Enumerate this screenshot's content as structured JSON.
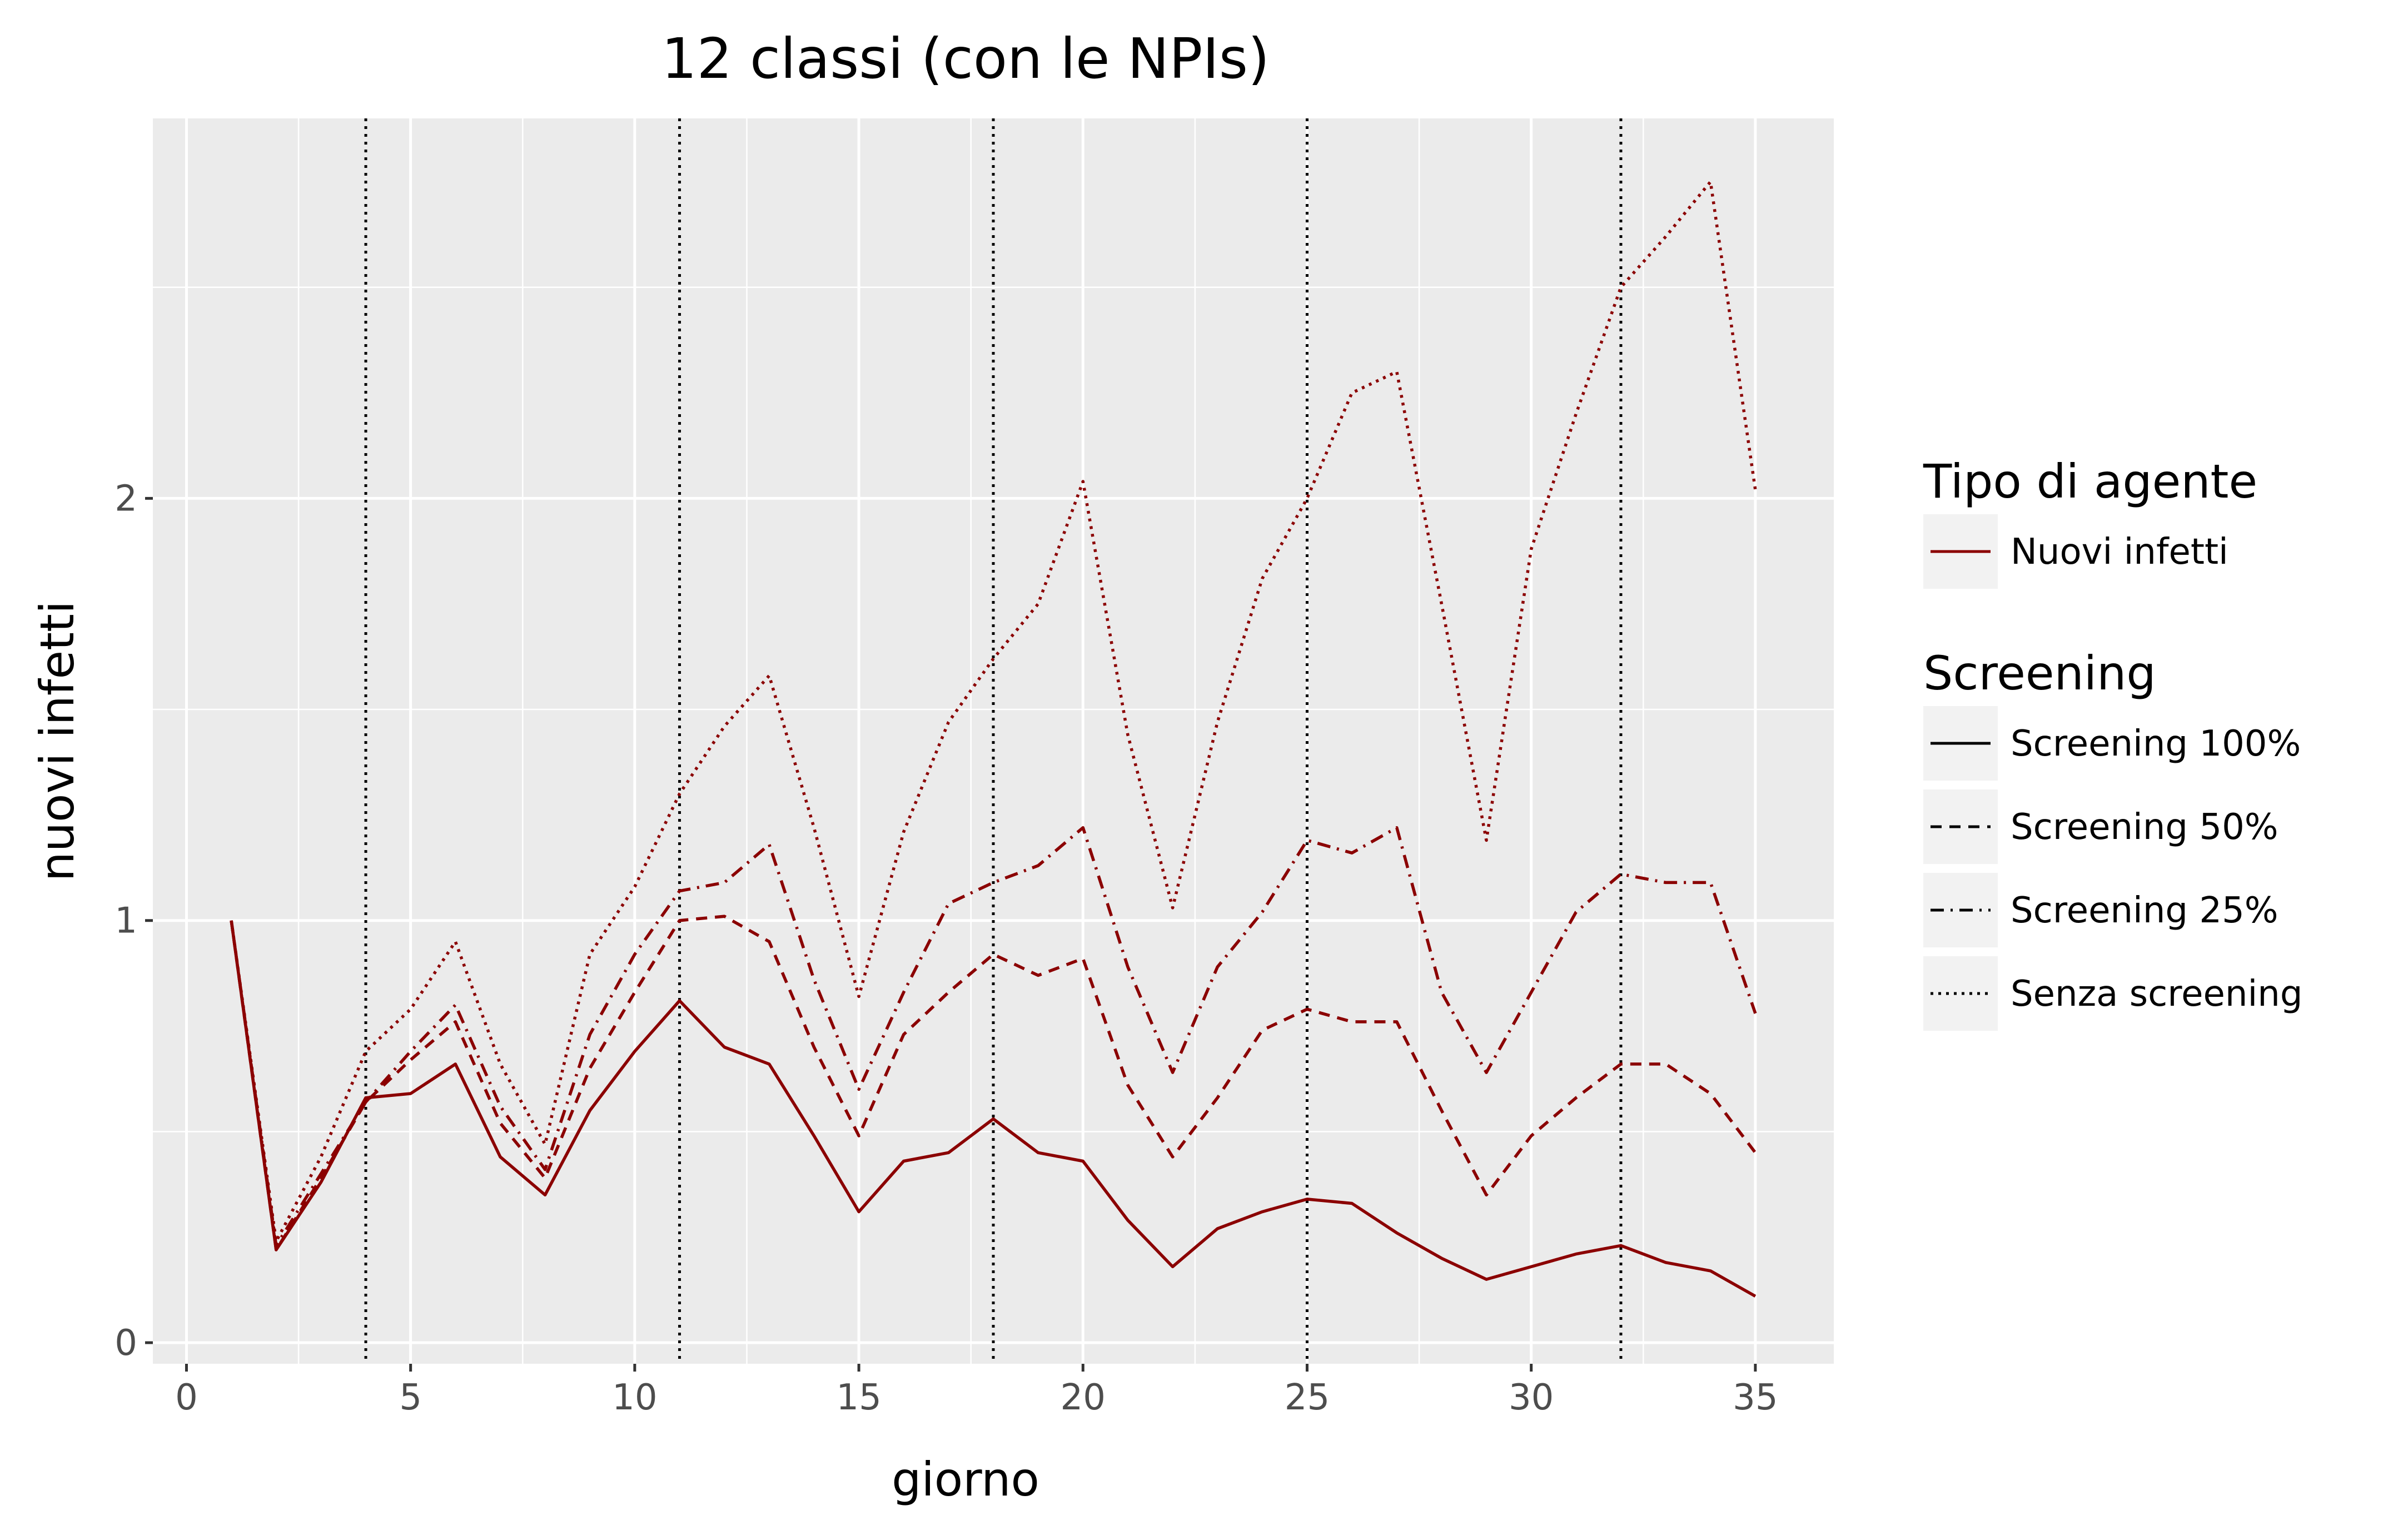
{
  "chart_data": {
    "type": "line",
    "title": "12 classi (con le NPIs)",
    "xlabel": "giorno",
    "ylabel": "nuovi infetti",
    "xlim": [
      -0.75,
      36.75
    ],
    "ylim": [
      -0.05,
      2.9
    ],
    "xticks": [
      0,
      5,
      10,
      15,
      20,
      25,
      30,
      35
    ],
    "xtick_labels": [
      "0",
      "5",
      "10",
      "15",
      "20",
      "25",
      "30",
      "35"
    ],
    "yticks": [
      0,
      1,
      2
    ],
    "ytick_labels": [
      "0",
      "1",
      "2"
    ],
    "grid": true,
    "vlines": [
      4,
      11,
      18,
      25,
      32
    ],
    "line_color": "#8b0000",
    "x": [
      1,
      2,
      3,
      4,
      5,
      6,
      7,
      8,
      9,
      10,
      11,
      12,
      13,
      14,
      15,
      16,
      17,
      18,
      19,
      20,
      21,
      22,
      23,
      24,
      25,
      26,
      27,
      28,
      29,
      30,
      31,
      32,
      33,
      34,
      35
    ],
    "series": [
      {
        "name": "Screening 100%",
        "dash": "solid",
        "values": [
          1.0,
          0.22,
          0.38,
          0.58,
          0.59,
          0.66,
          0.44,
          0.35,
          0.55,
          0.69,
          0.81,
          0.7,
          0.66,
          0.49,
          0.31,
          0.43,
          0.45,
          0.53,
          0.45,
          0.43,
          0.29,
          0.18,
          0.27,
          0.31,
          0.34,
          0.33,
          0.26,
          0.2,
          0.15,
          0.18,
          0.21,
          0.23,
          0.19,
          0.17,
          0.11
        ]
      },
      {
        "name": "Screening 50%",
        "dash": "dashed",
        "values": [
          1.0,
          0.22,
          0.39,
          0.57,
          0.67,
          0.76,
          0.52,
          0.39,
          0.65,
          0.83,
          1.0,
          1.01,
          0.95,
          0.7,
          0.49,
          0.73,
          0.83,
          0.92,
          0.87,
          0.91,
          0.61,
          0.44,
          0.58,
          0.74,
          0.79,
          0.76,
          0.76,
          0.55,
          0.35,
          0.49,
          0.58,
          0.66,
          0.66,
          0.59,
          0.45
        ]
      },
      {
        "name": "Screening 25%",
        "dash": "dashdot",
        "values": [
          1.0,
          0.23,
          0.4,
          0.57,
          0.69,
          0.8,
          0.56,
          0.41,
          0.73,
          0.92,
          1.07,
          1.09,
          1.18,
          0.86,
          0.6,
          0.83,
          1.04,
          1.09,
          1.13,
          1.22,
          0.89,
          0.64,
          0.89,
          1.02,
          1.19,
          1.16,
          1.22,
          0.83,
          0.64,
          0.83,
          1.02,
          1.11,
          1.09,
          1.09,
          0.78
        ]
      },
      {
        "name": "Senza screening",
        "dash": "dotted",
        "values": [
          1.0,
          0.24,
          0.44,
          0.69,
          0.79,
          0.95,
          0.66,
          0.47,
          0.92,
          1.08,
          1.3,
          1.46,
          1.58,
          1.22,
          0.82,
          1.21,
          1.47,
          1.62,
          1.75,
          2.04,
          1.44,
          1.03,
          1.47,
          1.81,
          2.0,
          2.25,
          2.3,
          1.75,
          1.19,
          1.88,
          2.2,
          2.5,
          2.62,
          2.75,
          2.02
        ]
      }
    ],
    "legend": {
      "position": "right",
      "agent_title": "Tipo di agente",
      "agent_label": "Nuovi infetti",
      "screening_title": "Screening",
      "screening_labels": [
        "Screening 100%",
        "Screening 50%",
        "Screening 25%",
        "Senza screening"
      ]
    }
  }
}
